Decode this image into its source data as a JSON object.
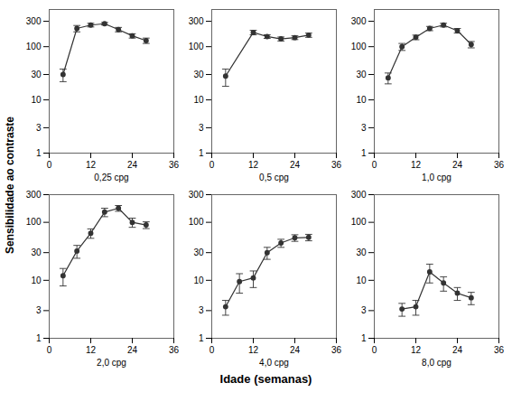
{
  "xlabel": "Idade (semanas)",
  "ylabel": "Sensibilidade ao contraste",
  "chart_data": [
    {
      "type": "line",
      "xlabel": "0,25 cpg",
      "x": [
        4,
        8,
        12,
        16,
        20,
        24,
        28
      ],
      "values": [
        30,
        220,
        255,
        270,
        210,
        160,
        130
      ],
      "yerr_lo": [
        8,
        30,
        20,
        15,
        20,
        15,
        15
      ],
      "yerr_hi": [
        8,
        30,
        20,
        15,
        20,
        15,
        15
      ],
      "color": "#333333",
      "marker": "circle",
      "line_style": "solid",
      "xlim": [
        0,
        36
      ],
      "xticks": [
        0,
        12,
        24,
        36
      ],
      "ylim": [
        1,
        500
      ],
      "yticks": [
        1,
        3,
        10,
        30,
        100,
        300
      ],
      "log": "y",
      "grid": false
    },
    {
      "type": "line",
      "xlabel": "0,5 cpg",
      "x": [
        4,
        12,
        16,
        20,
        24,
        28
      ],
      "values": [
        28,
        185,
        155,
        140,
        148,
        165
      ],
      "yerr_lo": [
        10,
        18,
        12,
        12,
        12,
        15
      ],
      "yerr_hi": [
        10,
        18,
        12,
        12,
        12,
        15
      ],
      "color": "#333333",
      "marker": "circle",
      "line_style": "solid",
      "xlim": [
        0,
        36
      ],
      "xticks": [
        0,
        12,
        24,
        36
      ],
      "ylim": [
        1,
        500
      ],
      "yticks": [
        1,
        3,
        10,
        30,
        100,
        300
      ],
      "log": "y",
      "grid": false
    },
    {
      "type": "line",
      "xlabel": "1,0 cpg",
      "x": [
        4,
        8,
        12,
        16,
        20,
        24,
        28
      ],
      "values": [
        26,
        100,
        150,
        220,
        255,
        200,
        110
      ],
      "yerr_lo": [
        6,
        15,
        15,
        20,
        20,
        20,
        15
      ],
      "yerr_hi": [
        6,
        15,
        15,
        20,
        20,
        20,
        15
      ],
      "color": "#333333",
      "marker": "circle",
      "line_style": "solid",
      "xlim": [
        0,
        36
      ],
      "xticks": [
        0,
        12,
        24,
        36
      ],
      "ylim": [
        1,
        500
      ],
      "yticks": [
        1,
        3,
        10,
        30,
        100,
        300
      ],
      "log": "y",
      "grid": false
    },
    {
      "type": "line",
      "xlabel": "2,0 cpg",
      "x": [
        4,
        8,
        12,
        16,
        20,
        24,
        28
      ],
      "values": [
        12,
        32,
        65,
        150,
        175,
        100,
        90
      ],
      "yerr_lo": [
        4,
        8,
        12,
        25,
        20,
        18,
        12
      ],
      "yerr_hi": [
        4,
        8,
        12,
        25,
        20,
        18,
        12
      ],
      "color": "#333333",
      "marker": "circle",
      "line_style": "solid",
      "xlim": [
        0,
        36
      ],
      "xticks": [
        0,
        12,
        24,
        36
      ],
      "ylim": [
        1,
        300
      ],
      "yticks": [
        1,
        3,
        10,
        30,
        100,
        300
      ],
      "log": "y",
      "grid": false
    },
    {
      "type": "line",
      "xlabel": "4,0 cpg",
      "x": [
        4,
        8,
        12,
        16,
        20,
        24,
        28
      ],
      "values": [
        3.5,
        9.5,
        11,
        30,
        44,
        54,
        55
      ],
      "yerr_lo": [
        1.0,
        3.5,
        3.5,
        7,
        7,
        7,
        7
      ],
      "yerr_hi": [
        1.0,
        3.5,
        3.5,
        7,
        7,
        7,
        7
      ],
      "color": "#333333",
      "marker": "circle",
      "line_style": "solid",
      "xlim": [
        0,
        36
      ],
      "xticks": [
        0,
        12,
        24,
        36
      ],
      "ylim": [
        1,
        300
      ],
      "yticks": [
        1,
        3,
        10,
        30,
        100,
        300
      ],
      "log": "y",
      "grid": false
    },
    {
      "type": "line",
      "xlabel": "8,0 cpg",
      "x": [
        8,
        12,
        16,
        20,
        24,
        28
      ],
      "values": [
        3.2,
        3.5,
        14,
        9,
        6,
        5
      ],
      "yerr_lo": [
        0.8,
        1.0,
        5,
        2.5,
        1.5,
        1.2
      ],
      "yerr_hi": [
        0.8,
        1.0,
        5,
        2.5,
        1.5,
        1.2
      ],
      "color": "#333333",
      "marker": "circle",
      "line_style": "solid",
      "xlim": [
        0,
        36
      ],
      "xticks": [
        0,
        12,
        24,
        36
      ],
      "ylim": [
        1,
        300
      ],
      "yticks": [
        1,
        3,
        10,
        30,
        100,
        300
      ],
      "log": "y",
      "grid": false
    }
  ]
}
